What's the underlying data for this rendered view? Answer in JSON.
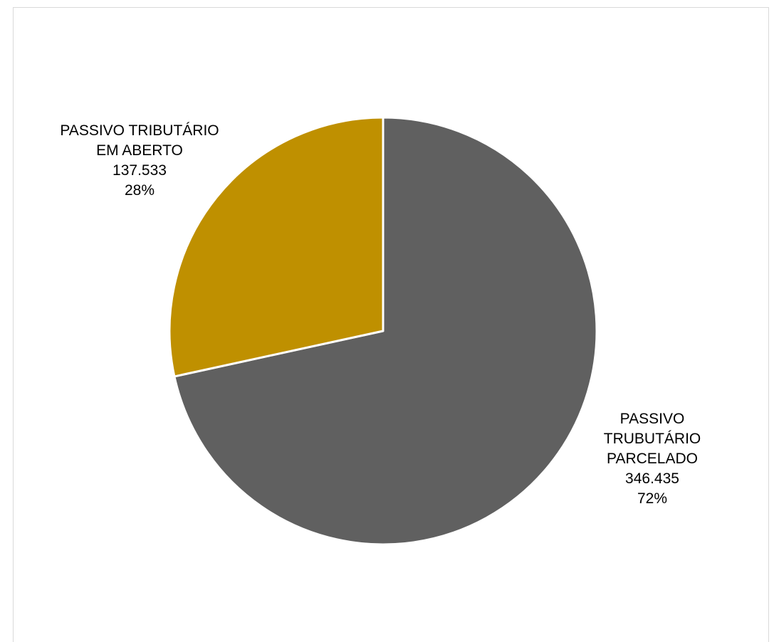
{
  "chart_data": {
    "type": "pie",
    "title": "",
    "slices": [
      {
        "label_lines": [
          "PASSIVO",
          "TRUBUTÁRIO",
          "PARCELADO"
        ],
        "value": 346435,
        "value_text": "346.435",
        "percent_text": "72%",
        "color": "#606060"
      },
      {
        "label_lines": [
          "PASSIVO TRIBUTÁRIO",
          "EM ABERTO"
        ],
        "value": 137533,
        "value_text": "137.533",
        "percent_text": "28%",
        "color": "#bf9000"
      }
    ],
    "start_angle": "12 o'clock, clockwise",
    "legend": "none"
  }
}
